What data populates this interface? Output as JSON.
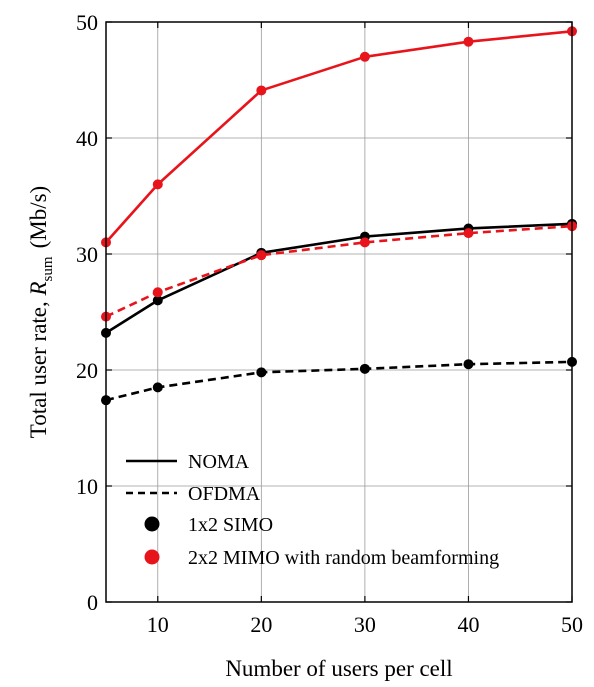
{
  "chart_data": {
    "type": "line",
    "xlabel": "Number of users per cell",
    "ylabel_main": "Total user rate, ",
    "ylabel_symbol": "R",
    "ylabel_subscript": "sum",
    "ylabel_unit": "(Mb/s)",
    "xlim": [
      5,
      50
    ],
    "ylim": [
      0,
      50
    ],
    "x_ticks": [
      10,
      20,
      30,
      40,
      50
    ],
    "y_ticks": [
      0,
      10,
      20,
      30,
      40,
      50
    ],
    "grid": true,
    "legend_position": "lower-left",
    "legend": [
      {
        "label": "NOMA",
        "kind": "line",
        "dash": "solid"
      },
      {
        "label": "OFDMA",
        "kind": "line",
        "dash": "dashed"
      },
      {
        "label": "1x2 SIMO",
        "kind": "marker",
        "color": "#000000"
      },
      {
        "label": "2x2 MIMO with random beamforming",
        "kind": "marker",
        "color": "#e8141b"
      }
    ],
    "x": [
      5,
      10,
      20,
      30,
      40,
      50
    ],
    "series": [
      {
        "id": "mimo-noma",
        "values": [
          31.0,
          36.0,
          44.1,
          47.0,
          48.3,
          49.2
        ],
        "color": "#e8141b",
        "dash": "solid"
      },
      {
        "id": "simo-noma",
        "values": [
          23.2,
          26.0,
          30.1,
          31.5,
          32.2,
          32.6
        ],
        "color": "#000000",
        "dash": "solid"
      },
      {
        "id": "mimo-ofdma",
        "values": [
          24.6,
          26.7,
          29.9,
          31.0,
          31.8,
          32.4
        ],
        "color": "#e8141b",
        "dash": "dashed"
      },
      {
        "id": "simo-ofdma",
        "values": [
          17.4,
          18.5,
          19.8,
          20.1,
          20.5,
          20.7
        ],
        "color": "#000000",
        "dash": "dashed"
      }
    ]
  }
}
